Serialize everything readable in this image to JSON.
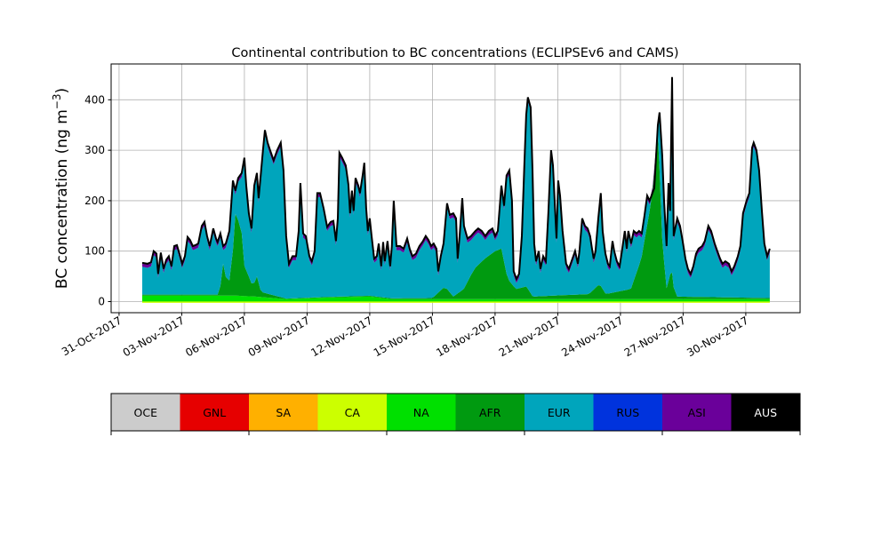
{
  "chart_data": {
    "type": "area",
    "stacked": true,
    "title": "Continental contribution to BC concentrations (ECLIPSEv6 and CAMS)",
    "ylabel": "BC concentration (ng m",
    "ylabel_sup": "−3",
    "ylabel_close": ")",
    "xlabel": "",
    "ylim": [
      -22,
      471
    ],
    "xlim_days_since_31oct": [
      -0.38,
      32.6
    ],
    "grid": true,
    "yticks": [
      0,
      100,
      200,
      300,
      400
    ],
    "xticks": [
      {
        "day": 0,
        "label": "31-Oct-2017"
      },
      {
        "day": 3,
        "label": "03-Nov-2017"
      },
      {
        "day": 6,
        "label": "06-Nov-2017"
      },
      {
        "day": 9,
        "label": "09-Nov-2017"
      },
      {
        "day": 12,
        "label": "12-Nov-2017"
      },
      {
        "day": 15,
        "label": "15-Nov-2017"
      },
      {
        "day": 18,
        "label": "18-Nov-2017"
      },
      {
        "day": 21,
        "label": "21-Nov-2017"
      },
      {
        "day": 24,
        "label": "24-Nov-2017"
      },
      {
        "day": 27,
        "label": "27-Nov-2017"
      },
      {
        "day": 30,
        "label": "30-Nov-2017"
      }
    ],
    "legend": {
      "placement": "bottom colorbar",
      "entries": [
        {
          "name": "OCE",
          "color": "#cccccc",
          "text_color": "#000000"
        },
        {
          "name": "GNL",
          "color": "#e60000",
          "text_color": "#000000"
        },
        {
          "name": "SA",
          "color": "#ffb000",
          "text_color": "#000000"
        },
        {
          "name": "CA",
          "color": "#ccff00",
          "text_color": "#000000"
        },
        {
          "name": "NA",
          "color": "#00e000",
          "text_color": "#000000"
        },
        {
          "name": "AFR",
          "color": "#009a10",
          "text_color": "#000000"
        },
        {
          "name": "EUR",
          "color": "#00a5bc",
          "text_color": "#000000"
        },
        {
          "name": "RUS",
          "color": "#0033dd",
          "text_color": "#000000"
        },
        {
          "name": "ASI",
          "color": "#6a009a",
          "text_color": "#000000"
        },
        {
          "name": "AUS",
          "color": "#000000",
          "text_color": "#ffffff"
        }
      ]
    },
    "x_days": [
      1.11,
      1.36,
      1.53,
      1.66,
      1.79,
      1.87,
      2.0,
      2.13,
      2.26,
      2.38,
      2.51,
      2.64,
      2.77,
      2.89,
      3.02,
      3.15,
      3.28,
      3.4,
      3.53,
      3.66,
      3.79,
      3.96,
      4.09,
      4.21,
      4.34,
      4.51,
      4.64,
      4.72,
      4.85,
      4.98,
      5.11,
      5.28,
      5.45,
      5.57,
      5.7,
      5.87,
      6.0,
      6.09,
      6.21,
      6.34,
      6.47,
      6.6,
      6.68,
      6.77,
      6.89,
      6.98,
      7.11,
      7.23,
      7.4,
      7.57,
      7.74,
      7.87,
      8.0,
      8.13,
      8.3,
      8.47,
      8.6,
      8.68,
      8.81,
      8.94,
      9.11,
      9.23,
      9.36,
      9.49,
      9.62,
      9.79,
      9.96,
      10.13,
      10.26,
      10.38,
      10.47,
      10.55,
      10.68,
      10.85,
      10.98,
      11.06,
      11.15,
      11.23,
      11.32,
      11.45,
      11.53,
      11.66,
      11.74,
      11.83,
      11.91,
      12.0,
      12.09,
      12.21,
      12.34,
      12.43,
      12.55,
      12.64,
      12.72,
      12.85,
      12.98,
      13.06,
      13.15,
      13.28,
      13.45,
      13.62,
      13.79,
      13.91,
      14.04,
      14.21,
      14.38,
      14.55,
      14.68,
      14.81,
      14.94,
      15.06,
      15.19,
      15.28,
      15.4,
      15.53,
      15.7,
      15.83,
      16.0,
      16.13,
      16.21,
      16.3,
      16.43,
      16.51,
      16.68,
      16.85,
      17.06,
      17.19,
      17.36,
      17.53,
      17.7,
      17.87,
      18.0,
      18.13,
      18.3,
      18.43,
      18.55,
      18.68,
      18.81,
      18.89,
      19.02,
      19.15,
      19.28,
      19.4,
      19.49,
      19.57,
      19.7,
      19.79,
      19.87,
      19.96,
      20.09,
      20.17,
      20.3,
      20.43,
      20.55,
      20.68,
      20.77,
      20.85,
      20.94,
      21.02,
      21.11,
      21.23,
      21.4,
      21.53,
      21.66,
      21.83,
      21.96,
      22.04,
      22.17,
      22.3,
      22.43,
      22.55,
      22.64,
      22.72,
      22.81,
      22.94,
      23.06,
      23.15,
      23.28,
      23.4,
      23.49,
      23.62,
      23.7,
      23.83,
      23.96,
      24.09,
      24.21,
      24.3,
      24.38,
      24.51,
      24.64,
      24.77,
      24.89,
      25.02,
      25.15,
      25.28,
      25.4,
      25.53,
      25.62,
      25.79,
      25.87,
      26.0,
      26.09,
      26.21,
      26.3,
      26.38,
      26.47,
      26.55,
      26.72,
      26.85,
      26.98,
      27.11,
      27.23,
      27.36,
      27.49,
      27.62,
      27.74,
      27.91,
      28.04,
      28.21,
      28.34,
      28.51,
      28.64,
      28.77,
      28.89,
      29.02,
      29.19,
      29.32,
      29.45,
      29.62,
      29.74,
      29.87,
      30.04,
      30.17,
      30.3,
      30.38,
      30.51,
      30.64,
      30.77,
      30.89,
      31.02,
      31.15
    ],
    "total": [
      77,
      75,
      78,
      100,
      95,
      55,
      97,
      65,
      83,
      90,
      70,
      110,
      112,
      95,
      75,
      90,
      128,
      122,
      110,
      112,
      115,
      150,
      158,
      130,
      110,
      145,
      125,
      118,
      135,
      110,
      115,
      140,
      240,
      220,
      245,
      255,
      285,
      230,
      175,
      145,
      230,
      255,
      205,
      245,
      300,
      340,
      315,
      300,
      280,
      300,
      315,
      260,
      130,
      75,
      90,
      90,
      140,
      235,
      135,
      130,
      90,
      80,
      100,
      215,
      215,
      185,
      148,
      158,
      160,
      120,
      165,
      295,
      285,
      270,
      232,
      175,
      220,
      180,
      245,
      230,
      215,
      250,
      275,
      185,
      140,
      165,
      130,
      85,
      90,
      115,
      70,
      118,
      80,
      120,
      70,
      110,
      200,
      110,
      110,
      105,
      125,
      105,
      90,
      95,
      110,
      120,
      130,
      122,
      110,
      115,
      105,
      60,
      90,
      115,
      195,
      172,
      175,
      165,
      85,
      130,
      205,
      150,
      125,
      130,
      140,
      145,
      140,
      130,
      140,
      145,
      130,
      140,
      230,
      190,
      250,
      260,
      200,
      60,
      45,
      55,
      130,
      270,
      370,
      405,
      385,
      260,
      115,
      80,
      100,
      65,
      90,
      80,
      175,
      300,
      270,
      200,
      125,
      240,
      210,
      140,
      75,
      65,
      80,
      100,
      75,
      100,
      165,
      150,
      145,
      130,
      105,
      85,
      100,
      165,
      215,
      140,
      95,
      75,
      70,
      120,
      100,
      80,
      70,
      105,
      140,
      105,
      140,
      115,
      140,
      135,
      140,
      135,
      170,
      210,
      200,
      215,
      225,
      350,
      375,
      290,
      200,
      110,
      235,
      180,
      445,
      130,
      165,
      150,
      120,
      85,
      65,
      55,
      70,
      95,
      105,
      110,
      120,
      150,
      140,
      115,
      100,
      85,
      75,
      80,
      75,
      60,
      70,
      90,
      110,
      175,
      200,
      215,
      305,
      315,
      300,
      260,
      180,
      115,
      90,
      105
    ],
    "components": {
      "NA": [
        [
          1.1,
          12
        ],
        [
          5.5,
          12
        ],
        [
          6.5,
          10
        ],
        [
          8,
          5
        ],
        [
          10,
          8
        ],
        [
          12,
          10
        ],
        [
          13,
          5
        ],
        [
          31.2,
          5
        ]
      ],
      "AFR": [
        [
          1.1,
          2
        ],
        [
          4.8,
          2
        ],
        [
          5.0,
          70
        ],
        [
          5.2,
          10
        ],
        [
          5.4,
          60
        ],
        [
          5.6,
          180
        ],
        [
          5.7,
          150
        ],
        [
          5.9,
          120
        ],
        [
          6.0,
          60
        ],
        [
          6.4,
          20
        ],
        [
          6.6,
          40
        ],
        [
          6.8,
          10
        ],
        [
          8,
          1
        ],
        [
          15,
          2
        ],
        [
          15.6,
          25
        ],
        [
          16,
          5
        ],
        [
          16.5,
          20
        ],
        [
          17,
          60
        ],
        [
          17.5,
          80
        ],
        [
          18,
          95
        ],
        [
          18.3,
          100
        ],
        [
          18.6,
          40
        ],
        [
          19,
          20
        ],
        [
          19.5,
          25
        ],
        [
          19.8,
          5
        ],
        [
          22.5,
          10
        ],
        [
          23,
          30
        ],
        [
          23.3,
          10
        ],
        [
          24.5,
          20
        ],
        [
          25,
          80
        ],
        [
          25.5,
          200
        ],
        [
          25.8,
          330
        ],
        [
          26.0,
          120
        ],
        [
          26.2,
          20
        ],
        [
          26.45,
          60
        ],
        [
          26.6,
          5
        ],
        [
          31.2,
          2
        ]
      ],
      "ASI": [
        [
          1.1,
          6
        ],
        [
          31.2,
          6
        ]
      ],
      "AUS": [
        [
          1.1,
          2
        ],
        [
          31.2,
          2
        ]
      ]
    },
    "residual_series": "EUR"
  }
}
